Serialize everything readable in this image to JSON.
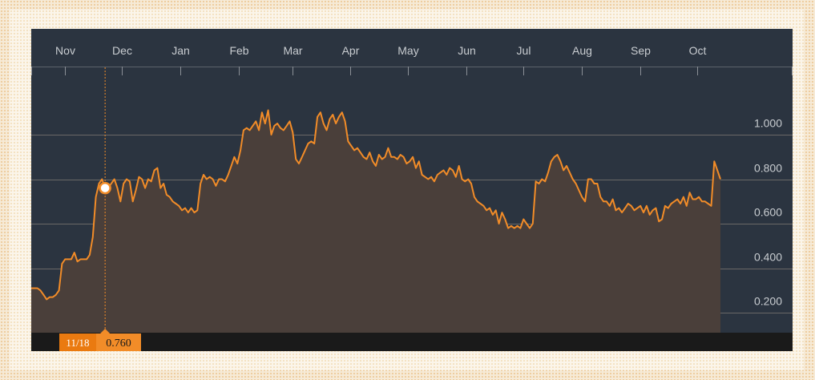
{
  "chart_data": {
    "type": "area",
    "x_ticks": [
      "Nov",
      "Dec",
      "Jan",
      "Feb",
      "Mar",
      "Apr",
      "May",
      "Jun",
      "Jul",
      "Aug",
      "Sep",
      "Oct"
    ],
    "y_ticks": [
      "1.000",
      "0.800",
      "0.600",
      "0.400",
      "0.200"
    ],
    "y_tick_values": [
      1.0,
      0.8,
      0.6,
      0.4,
      0.2
    ],
    "ylim": [
      0.1,
      1.2
    ],
    "series": [
      {
        "values": [
          0.31,
          0.31,
          0.31,
          0.3,
          0.28,
          0.26,
          0.27,
          0.27,
          0.28,
          0.3,
          0.42,
          0.44,
          0.44,
          0.44,
          0.47,
          0.43,
          0.44,
          0.44,
          0.44,
          0.46,
          0.54,
          0.72,
          0.78,
          0.8,
          0.76,
          0.76,
          0.78,
          0.8,
          0.76,
          0.7,
          0.78,
          0.8,
          0.79,
          0.7,
          0.75,
          0.81,
          0.8,
          0.76,
          0.8,
          0.79,
          0.84,
          0.85,
          0.76,
          0.78,
          0.73,
          0.72,
          0.7,
          0.69,
          0.68,
          0.66,
          0.67,
          0.65,
          0.67,
          0.65,
          0.66,
          0.78,
          0.82,
          0.8,
          0.81,
          0.8,
          0.77,
          0.8,
          0.8,
          0.79,
          0.82,
          0.86,
          0.9,
          0.87,
          0.93,
          1.02,
          1.03,
          1.02,
          1.04,
          1.06,
          1.02,
          1.1,
          1.05,
          1.11,
          1.0,
          1.04,
          1.05,
          1.03,
          1.02,
          1.04,
          1.06,
          1.01,
          0.89,
          0.87,
          0.9,
          0.93,
          0.96,
          0.97,
          0.96,
          1.08,
          1.1,
          1.05,
          1.02,
          1.07,
          1.09,
          1.05,
          1.08,
          1.1,
          1.06,
          0.97,
          0.95,
          0.93,
          0.94,
          0.92,
          0.9,
          0.89,
          0.92,
          0.88,
          0.86,
          0.91,
          0.89,
          0.9,
          0.94,
          0.9,
          0.9,
          0.89,
          0.91,
          0.9,
          0.87,
          0.88,
          0.9,
          0.85,
          0.88,
          0.82,
          0.81,
          0.8,
          0.81,
          0.79,
          0.82,
          0.83,
          0.84,
          0.82,
          0.85,
          0.84,
          0.81,
          0.86,
          0.8,
          0.79,
          0.8,
          0.78,
          0.72,
          0.7,
          0.69,
          0.68,
          0.66,
          0.67,
          0.64,
          0.66,
          0.6,
          0.65,
          0.62,
          0.58,
          0.59,
          0.58,
          0.59,
          0.58,
          0.62,
          0.6,
          0.58,
          0.6,
          0.79,
          0.78,
          0.8,
          0.79,
          0.83,
          0.88,
          0.9,
          0.91,
          0.88,
          0.84,
          0.86,
          0.83,
          0.8,
          0.78,
          0.75,
          0.72,
          0.7,
          0.8,
          0.8,
          0.78,
          0.78,
          0.72,
          0.7,
          0.7,
          0.68,
          0.71,
          0.66,
          0.67,
          0.65,
          0.67,
          0.69,
          0.68,
          0.66,
          0.67,
          0.68,
          0.65,
          0.68,
          0.64,
          0.66,
          0.67,
          0.61,
          0.62,
          0.68,
          0.67,
          0.69,
          0.7,
          0.71,
          0.69,
          0.72,
          0.68,
          0.74,
          0.71,
          0.71,
          0.72,
          0.7,
          0.7,
          0.69,
          0.68,
          0.88,
          0.84,
          0.8
        ]
      }
    ],
    "tooltip": {
      "date": "11/18",
      "value": "0.760",
      "point_index": 24
    },
    "grid": true,
    "colors": {
      "line": "#f28c28",
      "area": "#4a3f3a",
      "plot_bg": "#2b3440",
      "grid": "#7a7670",
      "text": "#c8ccd0",
      "axis_bar": "#1a1a1a",
      "tooltip_bg": "#f28c28"
    }
  }
}
